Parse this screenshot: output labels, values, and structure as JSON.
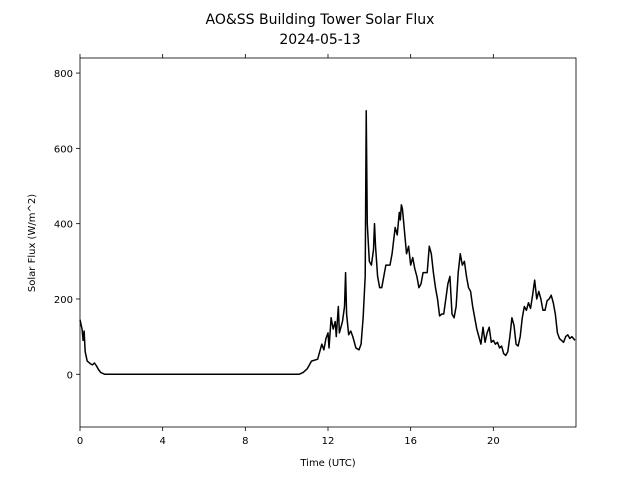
{
  "chart_data": {
    "type": "line",
    "title": "AO&SS Building Tower Solar Flux",
    "subtitle": "2024-05-13",
    "xlabel": "Time (UTC)",
    "ylabel": "Solar Flux (W/m^2)",
    "color": "#000000",
    "xlim": [
      0,
      24
    ],
    "ylim": [
      -140,
      840
    ],
    "xticks": [
      0,
      4,
      8,
      12,
      16,
      20
    ],
    "yticks": [
      0,
      200,
      400,
      600,
      800
    ],
    "grid": false,
    "x": [
      0,
      0.1,
      0.15,
      0.2,
      0.25,
      0.35,
      0.5,
      0.6,
      0.7,
      0.8,
      0.9,
      1.0,
      1.2,
      10.6,
      10.8,
      11.0,
      11.2,
      11.5,
      11.6,
      11.7,
      11.8,
      11.9,
      12.0,
      12.05,
      12.15,
      12.25,
      12.35,
      12.4,
      12.5,
      12.55,
      12.7,
      12.8,
      12.85,
      12.9,
      13.0,
      13.1,
      13.2,
      13.35,
      13.5,
      13.6,
      13.7,
      13.8,
      13.85,
      13.9,
      14.0,
      14.1,
      14.2,
      14.25,
      14.3,
      14.4,
      14.5,
      14.6,
      14.7,
      14.8,
      15.0,
      15.1,
      15.25,
      15.35,
      15.45,
      15.5,
      15.55,
      15.6,
      15.7,
      15.8,
      15.9,
      16.0,
      16.1,
      16.2,
      16.3,
      16.4,
      16.5,
      16.6,
      16.8,
      16.9,
      17.0,
      17.1,
      17.2,
      17.3,
      17.4,
      17.5,
      17.6,
      17.7,
      17.8,
      17.9,
      18.0,
      18.1,
      18.2,
      18.3,
      18.4,
      18.5,
      18.6,
      18.7,
      18.8,
      18.9,
      19.0,
      19.1,
      19.2,
      19.3,
      19.4,
      19.5,
      19.6,
      19.7,
      19.8,
      19.9,
      20.0,
      20.1,
      20.2,
      20.3,
      20.4,
      20.5,
      20.6,
      20.7,
      20.8,
      20.9,
      21.0,
      21.1,
      21.2,
      21.3,
      21.4,
      21.5,
      21.6,
      21.7,
      21.8,
      21.9,
      22.0,
      22.1,
      22.2,
      22.3,
      22.4,
      22.5,
      22.6,
      22.7,
      22.8,
      22.9,
      23.0,
      23.1,
      23.2,
      23.3,
      23.4,
      23.5,
      23.6,
      23.7,
      23.8,
      23.95
    ],
    "values": [
      145,
      120,
      90,
      115,
      60,
      35,
      28,
      25,
      30,
      22,
      12,
      5,
      0,
      0,
      5,
      15,
      35,
      40,
      60,
      80,
      65,
      95,
      110,
      70,
      150,
      120,
      140,
      100,
      180,
      110,
      140,
      180,
      270,
      160,
      105,
      115,
      100,
      70,
      65,
      80,
      150,
      260,
      700,
      400,
      300,
      290,
      330,
      400,
      340,
      260,
      230,
      230,
      260,
      290,
      290,
      320,
      390,
      370,
      430,
      410,
      450,
      440,
      380,
      320,
      340,
      290,
      310,
      280,
      260,
      230,
      240,
      270,
      270,
      340,
      320,
      270,
      230,
      200,
      155,
      160,
      160,
      200,
      240,
      260,
      160,
      150,
      180,
      270,
      320,
      290,
      300,
      260,
      230,
      220,
      180,
      150,
      120,
      100,
      80,
      125,
      85,
      110,
      125,
      85,
      90,
      80,
      85,
      70,
      75,
      55,
      50,
      60,
      100,
      150,
      130,
      80,
      75,
      100,
      150,
      180,
      170,
      190,
      175,
      210,
      250,
      200,
      220,
      200,
      170,
      170,
      195,
      200,
      210,
      190,
      160,
      110,
      95,
      90,
      85,
      100,
      105,
      95,
      100,
      90
    ]
  }
}
